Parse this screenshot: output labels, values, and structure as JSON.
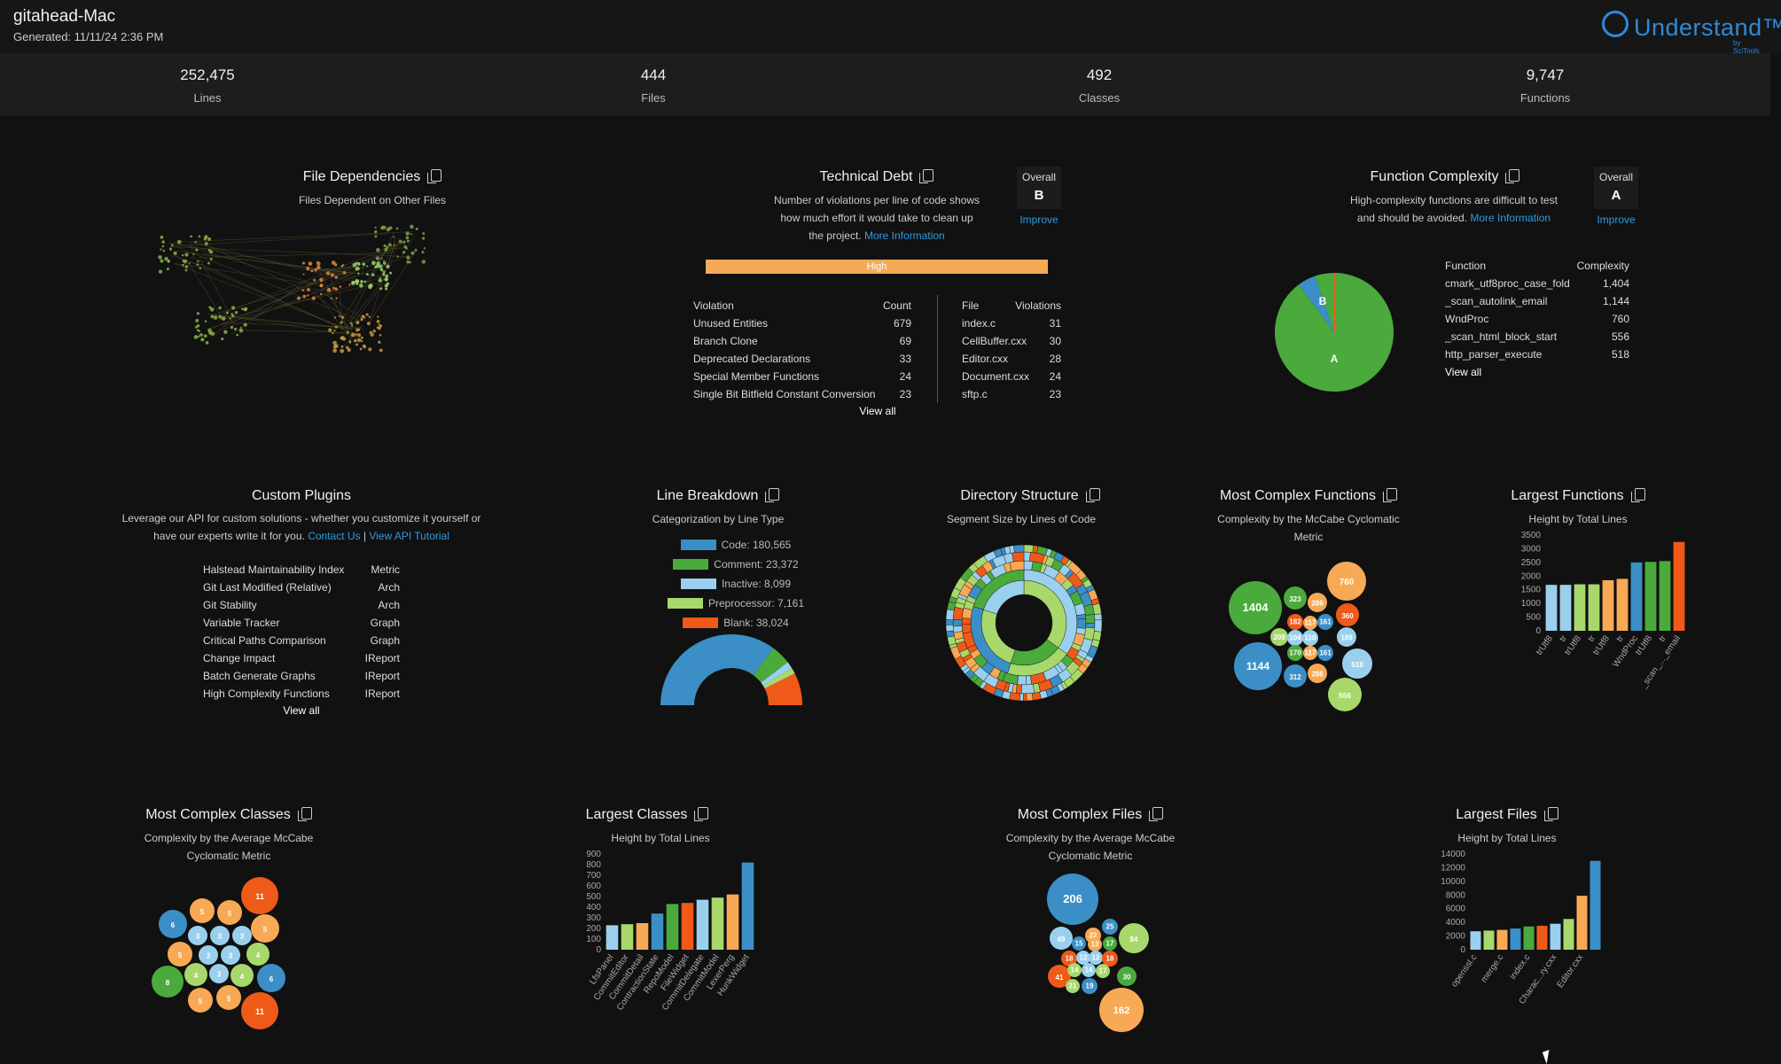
{
  "header": {
    "title": "gitahead-Mac",
    "generated": "Generated: 11/11/24 2:36 PM",
    "logo_text": "Understand™",
    "logo_by": "by SciTools"
  },
  "stats": [
    {
      "value": "252,475",
      "label": "Lines"
    },
    {
      "value": "444",
      "label": "Files"
    },
    {
      "value": "492",
      "label": "Classes"
    },
    {
      "value": "9,747",
      "label": "Functions"
    }
  ],
  "file_dependencies": {
    "title": "File Dependencies",
    "subtitle": "Files Dependent on Other Files"
  },
  "technical_debt": {
    "title": "Technical Debt",
    "desc1": "Number of violations per line of code shows",
    "desc2": "how much effort it would take to clean up",
    "desc3": "the project.",
    "more": "More Information",
    "overall_label": "Overall",
    "grade": "B",
    "improve": "Improve",
    "level": "High",
    "violations_header": [
      "Violation",
      "Count"
    ],
    "violations": [
      {
        "name": "Unused Entities",
        "count": "679"
      },
      {
        "name": "Branch Clone",
        "count": "69"
      },
      {
        "name": "Deprecated Declarations",
        "count": "33"
      },
      {
        "name": "Special Member Functions",
        "count": "24"
      },
      {
        "name": "Single Bit Bitfield Constant Conversion",
        "count": "23"
      }
    ],
    "files_header": [
      "File",
      "Violations"
    ],
    "files": [
      {
        "name": "index.c",
        "count": "31"
      },
      {
        "name": "CellBuffer.cxx",
        "count": "30"
      },
      {
        "name": "Editor.cxx",
        "count": "28"
      },
      {
        "name": "Document.cxx",
        "count": "24"
      },
      {
        "name": "sftp.c",
        "count": "23"
      }
    ],
    "view_all": "View all"
  },
  "function_complexity": {
    "title": "Function Complexity",
    "desc1": "High-complexity functions are difficult to test",
    "desc2": "and should be avoided.",
    "more": "More Information",
    "overall_label": "Overall",
    "grade": "A",
    "improve": "Improve",
    "header": [
      "Function",
      "Complexity"
    ],
    "rows": [
      {
        "name": "cmark_utf8proc_case_fold",
        "value": "1,404"
      },
      {
        "name": "_scan_autolink_email",
        "value": "1,144"
      },
      {
        "name": "WndProc",
        "value": "760"
      },
      {
        "name": "_scan_html_block_start",
        "value": "556"
      },
      {
        "name": "http_parser_execute",
        "value": "518"
      }
    ],
    "view_all": "View all",
    "pie_labels": [
      "A",
      "B"
    ],
    "colors": {
      "A": "#4aaa3c",
      "B": "#3b8fc6"
    }
  },
  "custom_plugins": {
    "title": "Custom Plugins",
    "desc1": "Leverage our API for custom solutions - whether you customize it yourself or",
    "desc2": "have our experts write it for you.",
    "contact": "Contact Us",
    "sep": "|",
    "tutorial": "View API Tutorial",
    "rows": [
      {
        "name": "Halstead Maintainability Index",
        "type": "Metric"
      },
      {
        "name": "Git Last Modified (Relative)",
        "type": "Arch"
      },
      {
        "name": "Git Stability",
        "type": "Arch"
      },
      {
        "name": "Variable Tracker",
        "type": "Graph"
      },
      {
        "name": "Critical Paths Comparison",
        "type": "Graph"
      },
      {
        "name": "Change Impact",
        "type": "IReport"
      },
      {
        "name": "Batch Generate Graphs",
        "type": "IReport"
      },
      {
        "name": "High Complexity Functions",
        "type": "IReport"
      }
    ],
    "view_all": "View all"
  },
  "line_breakdown": {
    "title": "Line Breakdown",
    "subtitle": "Categorization by Line Type",
    "legend": [
      {
        "label": "Code: 180,565",
        "color": "#3b8fc6"
      },
      {
        "label": "Comment: 23,372",
        "color": "#4aaa3c"
      },
      {
        "label": "Inactive: 8,099",
        "color": "#9ad0ee"
      },
      {
        "label": "Preprocessor: 7,161",
        "color": "#a8d86b"
      },
      {
        "label": "Blank: 38,024",
        "color": "#ef5a18"
      }
    ]
  },
  "directory_structure": {
    "title": "Directory Structure",
    "subtitle": "Segment Size by Lines of Code"
  },
  "most_complex_functions": {
    "title": "Most Complex Functions",
    "subtitle1": "Complexity by the McCabe Cyclomatic",
    "subtitle2": "Metric",
    "bubbles": [
      "1404",
      "323",
      "286",
      "760",
      "182",
      "117",
      "161",
      "360",
      "209",
      "104",
      "110",
      "189",
      "170",
      "117",
      "161",
      "1144",
      "312",
      "286",
      "518",
      "556"
    ]
  },
  "largest_functions": {
    "title": "Largest Functions",
    "subtitle": "Height by Total Lines"
  },
  "most_complex_classes": {
    "title": "Most Complex Classes",
    "subtitle1": "Complexity by the Average McCabe",
    "subtitle2": "Cyclomatic Metric",
    "bubbles": [
      "11",
      "5",
      "5",
      "6",
      "3",
      "3",
      "3",
      "5",
      "5",
      "3",
      "3",
      "4",
      "8",
      "4",
      "3",
      "4",
      "6",
      "5",
      "5",
      "11"
    ]
  },
  "largest_classes": {
    "title": "Largest Classes",
    "subtitle": "Height by Total Lines"
  },
  "most_complex_files": {
    "title": "Most Complex Files",
    "subtitle1": "Complexity by the Average McCabe",
    "subtitle2": "Cyclomatic Metric",
    "bubbles": [
      "206",
      "25",
      "49",
      "15",
      "22",
      "13",
      "17",
      "84",
      "18",
      "12",
      "12",
      "18",
      "41",
      "14",
      "14",
      "17",
      "30",
      "21",
      "19",
      "162"
    ]
  },
  "largest_files": {
    "title": "Largest Files",
    "subtitle": "Height by Total Lines"
  },
  "chart_data": [
    {
      "type": "pie",
      "title": "Function Complexity",
      "categories": [
        "A",
        "B"
      ],
      "values": [
        95,
        5
      ]
    },
    {
      "type": "pie",
      "title": "Line Breakdown",
      "categories": [
        "Code",
        "Comment",
        "Inactive",
        "Preprocessor",
        "Blank"
      ],
      "values": [
        180565,
        23372,
        8099,
        7161,
        38024
      ]
    },
    {
      "type": "bar",
      "title": "Largest Functions",
      "xlabel": "",
      "ylabel": "",
      "ylim": [
        0,
        3500
      ],
      "yticks": [
        "3500",
        "3000",
        "2500",
        "2000",
        "1500",
        "1000",
        "500",
        "0"
      ],
      "categories": [
        "trUtf8",
        "tr",
        "trUtf8",
        "tr",
        "trUtf8",
        "tr",
        "WndProc",
        "trUtf8",
        "tr",
        "_scan_..._email"
      ],
      "tick_labels": [
        "trUtf8",
        "tr",
        "trUtf8",
        "tr",
        "trUtf8",
        "tr",
        "WndProc",
        "trUtf8",
        "tr",
        "_scan_..._email"
      ],
      "values": [
        1680,
        1680,
        1700,
        1700,
        1850,
        1900,
        2500,
        2520,
        2550,
        3250
      ],
      "colors": [
        "#9ad0ee",
        "#9ad0ee",
        "#a8d86b",
        "#a8d86b",
        "#f7a955",
        "#f7a955",
        "#3b8fc6",
        "#4aaa3c",
        "#4aaa3c",
        "#ef5a18"
      ]
    },
    {
      "type": "bar",
      "title": "Largest Classes",
      "xlabel": "",
      "ylabel": "",
      "ylim": [
        0,
        900
      ],
      "yticks": [
        "900",
        "800",
        "700",
        "600",
        "500",
        "400",
        "300",
        "200",
        "100",
        "0"
      ],
      "categories": [
        "LfsPanel",
        "CommitEditor",
        "CommitDetail",
        "ContractionState",
        "RepoModel",
        "FileWidget",
        "CommitDelegate",
        "CommitModel",
        "LexerPerg",
        "HunkWidget"
      ],
      "tick_labels": [
        "LfsPanel",
        "CommitEditor",
        "CommitDetail",
        "ContractionState",
        "RepoModel",
        "FileWidget",
        "CommitDelegate",
        "CommitModel",
        "LexerPerg",
        "HunkWidget"
      ],
      "values": [
        230,
        240,
        250,
        340,
        430,
        440,
        470,
        490,
        520,
        820
      ],
      "colors": [
        "#9ad0ee",
        "#a8d86b",
        "#f7a955",
        "#3b8fc6",
        "#4aaa3c",
        "#ef5a18",
        "#9ad0ee",
        "#a8d86b",
        "#f7a955",
        "#3b8fc6"
      ]
    },
    {
      "type": "bar",
      "title": "Largest Files",
      "xlabel": "",
      "ylabel": "",
      "ylim": [
        0,
        14000
      ],
      "yticks": [
        "14000",
        "12000",
        "10000",
        "8000",
        "6000",
        "4000",
        "2000",
        "0"
      ],
      "categories": [
        "openssl.c",
        "",
        "merge.c",
        "",
        "index.c",
        "",
        "Charac...ry.cxx",
        "",
        "Editor.cxx",
        ""
      ],
      "tick_labels": [
        "openssl.c",
        "",
        "merge.c",
        "",
        "index.c",
        "",
        "Charac...ry.cxx",
        "",
        "Editor.cxx",
        ""
      ],
      "values": [
        2700,
        2800,
        2900,
        3100,
        3400,
        3500,
        3800,
        4500,
        7900,
        13000
      ],
      "colors": [
        "#9ad0ee",
        "#a8d86b",
        "#f7a955",
        "#3b8fc6",
        "#4aaa3c",
        "#ef5a18",
        "#9ad0ee",
        "#a8d86b",
        "#f7a955",
        "#3b8fc6"
      ]
    }
  ],
  "colors": {
    "accent": "#2f9ae0",
    "background": "#111111",
    "high": "#f7a955"
  }
}
